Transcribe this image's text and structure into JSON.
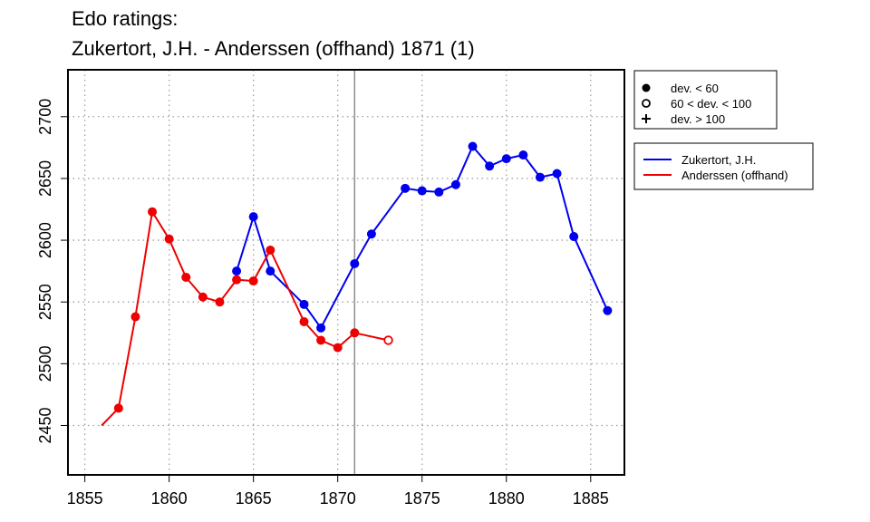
{
  "title_lines": [
    "Edo ratings:",
    "Zukertort, J.H. - Anderssen (offhand) 1871 (1)"
  ],
  "chart_data": {
    "type": "line",
    "xlim": [
      1854,
      1887
    ],
    "ylim": [
      2410,
      2738
    ],
    "x_ticks": [
      1855,
      1860,
      1865,
      1870,
      1875,
      1880,
      1885
    ],
    "y_ticks": [
      2450,
      2500,
      2550,
      2600,
      2650,
      2700
    ],
    "grid": true,
    "vline_x": 1871,
    "series": [
      {
        "name": "Zukertort, J.H.",
        "color": "#0000ee",
        "points": [
          {
            "x": 1864,
            "y": 2575,
            "marker": "filled"
          },
          {
            "x": 1865,
            "y": 2619,
            "marker": "filled"
          },
          {
            "x": 1866,
            "y": 2575,
            "marker": "filled"
          },
          {
            "x": 1868,
            "y": 2548,
            "marker": "filled"
          },
          {
            "x": 1869,
            "y": 2529,
            "marker": "filled"
          },
          {
            "x": 1871,
            "y": 2581,
            "marker": "filled"
          },
          {
            "x": 1872,
            "y": 2605,
            "marker": "filled"
          },
          {
            "x": 1874,
            "y": 2642,
            "marker": "filled"
          },
          {
            "x": 1875,
            "y": 2640,
            "marker": "filled"
          },
          {
            "x": 1876,
            "y": 2639,
            "marker": "filled"
          },
          {
            "x": 1877,
            "y": 2645,
            "marker": "filled"
          },
          {
            "x": 1878,
            "y": 2676,
            "marker": "filled"
          },
          {
            "x": 1879,
            "y": 2660,
            "marker": "filled"
          },
          {
            "x": 1880,
            "y": 2666,
            "marker": "filled"
          },
          {
            "x": 1881,
            "y": 2669,
            "marker": "filled"
          },
          {
            "x": 1882,
            "y": 2651,
            "marker": "filled"
          },
          {
            "x": 1883,
            "y": 2654,
            "marker": "filled"
          },
          {
            "x": 1884,
            "y": 2603,
            "marker": "filled"
          },
          {
            "x": 1886,
            "y": 2543,
            "marker": "filled"
          }
        ]
      },
      {
        "name": "Anderssen (offhand)",
        "color": "#ee0000",
        "points": [
          {
            "x": 1856,
            "y": 2450,
            "marker": "none"
          },
          {
            "x": 1857,
            "y": 2464,
            "marker": "filled"
          },
          {
            "x": 1858,
            "y": 2538,
            "marker": "filled"
          },
          {
            "x": 1859,
            "y": 2623,
            "marker": "filled"
          },
          {
            "x": 1860,
            "y": 2601,
            "marker": "filled"
          },
          {
            "x": 1861,
            "y": 2570,
            "marker": "filled"
          },
          {
            "x": 1862,
            "y": 2554,
            "marker": "filled"
          },
          {
            "x": 1863,
            "y": 2550,
            "marker": "filled"
          },
          {
            "x": 1864,
            "y": 2568,
            "marker": "filled"
          },
          {
            "x": 1865,
            "y": 2567,
            "marker": "filled"
          },
          {
            "x": 1866,
            "y": 2592,
            "marker": "filled"
          },
          {
            "x": 1868,
            "y": 2534,
            "marker": "filled"
          },
          {
            "x": 1869,
            "y": 2519,
            "marker": "filled"
          },
          {
            "x": 1870,
            "y": 2513,
            "marker": "filled"
          },
          {
            "x": 1871,
            "y": 2525,
            "marker": "filled"
          },
          {
            "x": 1873,
            "y": 2519,
            "marker": "open"
          }
        ]
      }
    ],
    "marker_legend": [
      {
        "symbol": "filled",
        "label": "dev. < 60"
      },
      {
        "symbol": "open",
        "label": "60 < dev. < 100"
      },
      {
        "symbol": "plus",
        "label": "dev. > 100"
      }
    ]
  }
}
